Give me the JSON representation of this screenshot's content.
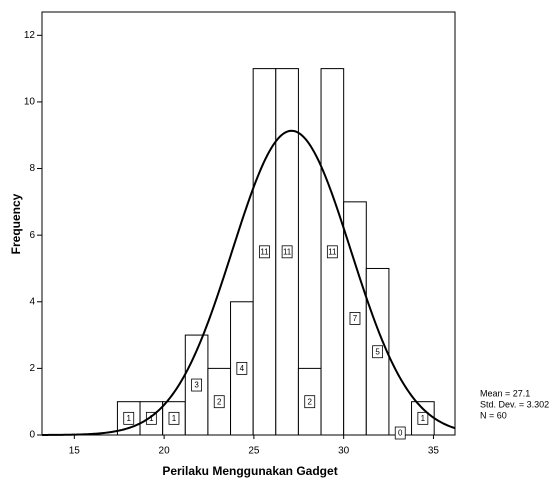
{
  "chart_data": {
    "type": "histogram",
    "x_label": "Perilaku Menggunakan Gadget",
    "y_label": "Frequency",
    "bins": [
      17.4,
      18.66,
      19.92,
      21.18,
      22.44,
      23.7,
      24.96,
      26.22,
      27.48,
      28.74,
      30,
      31.26,
      32.52,
      33.78,
      35.04
    ],
    "values": [
      1,
      1,
      1,
      3,
      2,
      4,
      11,
      11,
      2,
      11,
      7,
      5,
      0,
      1
    ],
    "xlim": [
      13.2,
      36.2
    ],
    "xticks": [
      15,
      20,
      25,
      30,
      35
    ],
    "ylim": [
      0,
      12.7
    ],
    "yticks": [
      0,
      2,
      4,
      6,
      8,
      10,
      12
    ],
    "color": "#ffffff",
    "curve_color": "#000000",
    "statistics": [
      {
        "value": 27.1,
        "label": "Mean = 27.1"
      },
      {
        "value": 3.302,
        "label": "Std. Dev. = 3.302"
      },
      {
        "value": 60,
        "label": "N = 60"
      }
    ]
  }
}
